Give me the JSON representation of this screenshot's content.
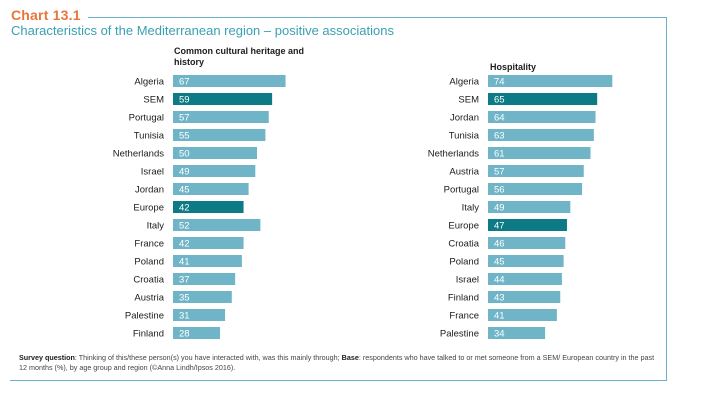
{
  "header": {
    "chart_number": "Chart 13.1",
    "title": "Characteristics of the Mediterranean region – positive associations"
  },
  "chart_data": [
    {
      "type": "bar",
      "orientation": "horizontal",
      "title": "Common cultural heritage and history",
      "categories": [
        "Algeria",
        "SEM",
        "Portugal",
        "Tunisia",
        "Netherlands",
        "Israel",
        "Jordan",
        "Europe",
        "Italy",
        "France",
        "Poland",
        "Croatia",
        "Austria",
        "Palestine",
        "Finland"
      ],
      "values": [
        67,
        59,
        57,
        55,
        50,
        49,
        45,
        42,
        52,
        42,
        41,
        37,
        35,
        31,
        28
      ],
      "highlight": [
        "SEM",
        "Europe"
      ],
      "xlim": [
        0,
        100
      ],
      "unit": "%",
      "colors": {
        "bar": "#6fb5c7",
        "highlight": "#0d7b85",
        "label": "#ffffff",
        "category": "#1c1c1c"
      }
    },
    {
      "type": "bar",
      "orientation": "horizontal",
      "title": "Hospitality",
      "categories": [
        "Algeria",
        "SEM",
        "Jordan",
        "Tunisia",
        "Netherlands",
        "Austria",
        "Portugal",
        "Italy",
        "Europe",
        "Croatia",
        "Poland",
        "Israel",
        "Finland",
        "France",
        "Palestine"
      ],
      "values": [
        74,
        65,
        64,
        63,
        61,
        57,
        56,
        49,
        47,
        46,
        45,
        44,
        43,
        41,
        34
      ],
      "highlight": [
        "SEM",
        "Europe"
      ],
      "xlim": [
        0,
        100
      ],
      "unit": "%",
      "colors": {
        "bar": "#6fb5c7",
        "highlight": "#0d7b85",
        "label": "#ffffff",
        "category": "#1c1c1c"
      }
    }
  ],
  "footnote": {
    "question_label": "Survey question",
    "question_text": ": Thinking of this/these person(s) you have interacted with, was this mainly through; ",
    "base_label": "Base",
    "base_text": ": respondents who have talked to or met someone from a SEM/ European country in the past 12 months (%), by age group and region (©Anna Lindh/Ipsos 2016)."
  }
}
